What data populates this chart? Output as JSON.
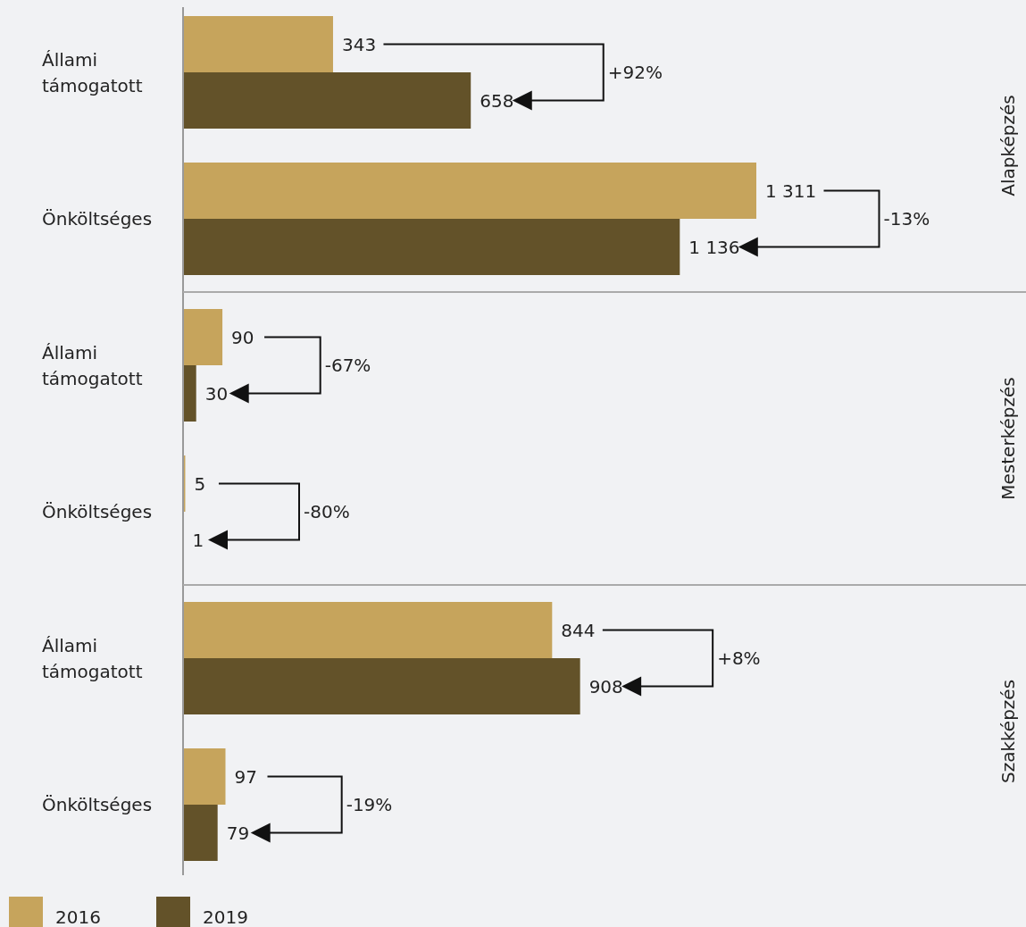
{
  "chart_data": {
    "type": "bar",
    "orientation": "horizontal",
    "legend": "bottom left",
    "categories": [
      "Állami támogatott",
      "Önköltséges",
      "Állami támogatott",
      "Önköltséges",
      "Állami támogatott",
      "Önköltséges"
    ],
    "series": [
      {
        "name": "2016",
        "color": "#c6a45c",
        "values": [
          343,
          1311,
          90,
          5,
          844,
          97
        ],
        "value_labels": [
          "343",
          "1 311",
          "90",
          "5",
          "844",
          "97"
        ]
      },
      {
        "name": "2019",
        "color": "#635229",
        "values": [
          658,
          1136,
          30,
          1,
          908,
          79
        ],
        "value_labels": [
          "658",
          "1 136",
          "30",
          "1",
          "908",
          "79"
        ]
      }
    ],
    "annotations": [
      "Alapképzés",
      "Mesterképzés",
      "Szakképzés",
      "+92%",
      "-13%",
      "-67%",
      "-80%",
      "+8%",
      "-19%"
    ]
  }
}
